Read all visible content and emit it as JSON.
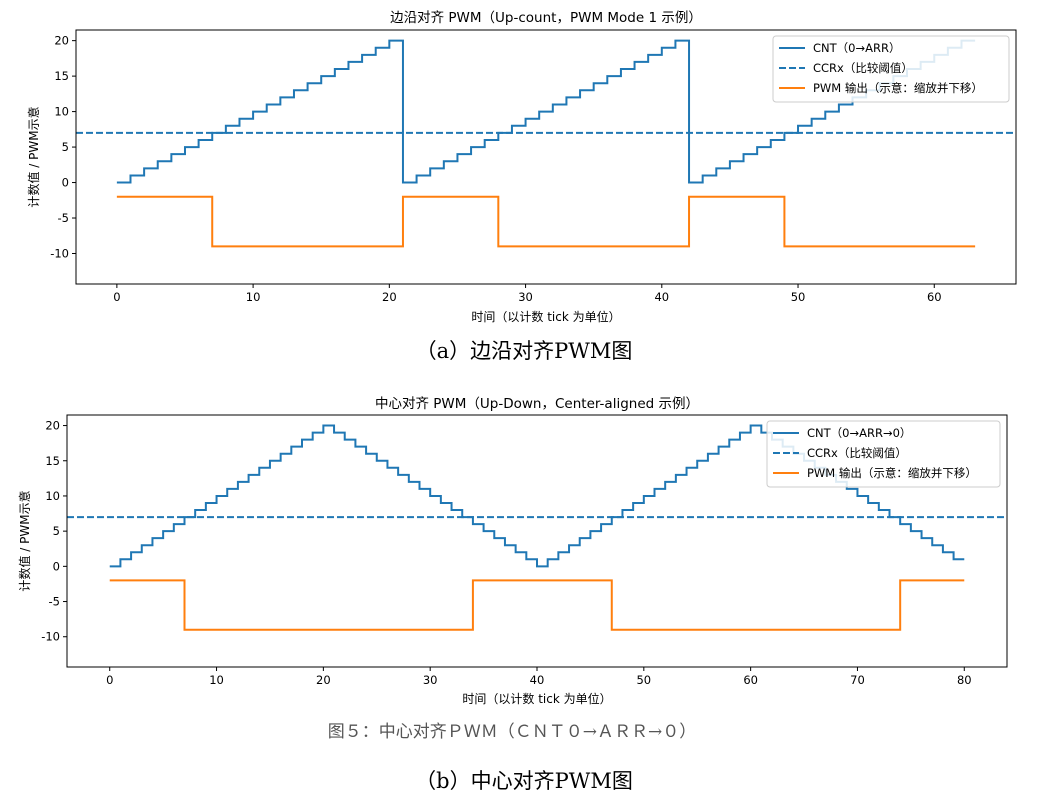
{
  "captions": {
    "a": "（a）边沿对齐PWM图",
    "b": "（b）中心对齐PWM图",
    "figure": "图５：中心对齐ＰＷＭ（ＣＮＴ０→ＡＲＲ→０）"
  },
  "colors": {
    "cnt": "#1f77b4",
    "ccr": "#1f77b4",
    "pwm": "#ff7f0e"
  },
  "chart_data": [
    {
      "type": "line",
      "title": "边沿对齐 PWM（Up-count，PWM Mode 1 示例）",
      "xlabel": "时间（以计数 tick 为单位）",
      "ylabel": "计数值 / PWM示意",
      "xlim": [
        -3,
        66
      ],
      "ylim": [
        -14.3,
        21.5
      ],
      "xticks": [
        0,
        10,
        20,
        30,
        40,
        50,
        60
      ],
      "yticks": [
        20,
        15,
        10,
        5,
        0,
        -5,
        -10
      ],
      "grid": false,
      "legend_position": "top-right",
      "series": [
        {
          "name": "CNT（0→ARR）",
          "style": "steps-post",
          "x": [
            0,
            1,
            2,
            3,
            4,
            5,
            6,
            7,
            8,
            9,
            10,
            11,
            12,
            13,
            14,
            15,
            16,
            17,
            18,
            19,
            20,
            21,
            22,
            23,
            24,
            25,
            26,
            27,
            28,
            29,
            30,
            31,
            32,
            33,
            34,
            35,
            36,
            37,
            38,
            39,
            40,
            41,
            42,
            43,
            44,
            45,
            46,
            47,
            48,
            49,
            50,
            51,
            52,
            53,
            54,
            55,
            56,
            57,
            58,
            59,
            60,
            61,
            62,
            63
          ],
          "y": [
            0,
            1,
            2,
            3,
            4,
            5,
            6,
            7,
            8,
            9,
            10,
            11,
            12,
            13,
            14,
            15,
            16,
            17,
            18,
            19,
            20,
            0,
            1,
            2,
            3,
            4,
            5,
            6,
            7,
            8,
            9,
            10,
            11,
            12,
            13,
            14,
            15,
            16,
            17,
            18,
            19,
            20,
            0,
            1,
            2,
            3,
            4,
            5,
            6,
            7,
            8,
            9,
            10,
            11,
            12,
            13,
            14,
            15,
            16,
            17,
            18,
            19,
            20,
            20
          ]
        },
        {
          "name": "CCRx（比较阈值）",
          "style": "hline-dashed",
          "y": 7
        },
        {
          "name": "PWM 输出（示意：缩放并下移）",
          "style": "steps-post",
          "x": [
            0,
            7,
            21,
            28,
            42,
            49,
            63
          ],
          "y": [
            -2,
            -9,
            -2,
            -9,
            -2,
            -9,
            -9
          ]
        }
      ]
    },
    {
      "type": "line",
      "title": "中心对齐 PWM（Up-Down，Center-aligned 示例）",
      "xlabel": "时间（以计数 tick 为单位）",
      "ylabel": "计数值 / PWM示意",
      "xlim": [
        -4,
        84
      ],
      "ylim": [
        -14.3,
        21.5
      ],
      "xticks": [
        0,
        10,
        20,
        30,
        40,
        50,
        60,
        70,
        80
      ],
      "yticks": [
        20,
        15,
        10,
        5,
        0,
        -5,
        -10
      ],
      "grid": false,
      "legend_position": "top-right",
      "series": [
        {
          "name": "CNT（0→ARR→0）",
          "style": "steps-post",
          "x": [
            0,
            1,
            2,
            3,
            4,
            5,
            6,
            7,
            8,
            9,
            10,
            11,
            12,
            13,
            14,
            15,
            16,
            17,
            18,
            19,
            20,
            21,
            22,
            23,
            24,
            25,
            26,
            27,
            28,
            29,
            30,
            31,
            32,
            33,
            34,
            35,
            36,
            37,
            38,
            39,
            40,
            41,
            42,
            43,
            44,
            45,
            46,
            47,
            48,
            49,
            50,
            51,
            52,
            53,
            54,
            55,
            56,
            57,
            58,
            59,
            60,
            61,
            62,
            63,
            64,
            65,
            66,
            67,
            68,
            69,
            70,
            71,
            72,
            73,
            74,
            75,
            76,
            77,
            78,
            79,
            80
          ],
          "y": [
            0,
            1,
            2,
            3,
            4,
            5,
            6,
            7,
            8,
            9,
            10,
            11,
            12,
            13,
            14,
            15,
            16,
            17,
            18,
            19,
            20,
            19,
            18,
            17,
            16,
            15,
            14,
            13,
            12,
            11,
            10,
            9,
            8,
            7,
            6,
            5,
            4,
            3,
            2,
            1,
            0,
            1,
            2,
            3,
            4,
            5,
            6,
            7,
            8,
            9,
            10,
            11,
            12,
            13,
            14,
            15,
            16,
            17,
            18,
            19,
            20,
            19,
            18,
            17,
            16,
            15,
            14,
            13,
            12,
            11,
            10,
            9,
            8,
            7,
            6,
            5,
            4,
            3,
            2,
            1,
            1
          ]
        },
        {
          "name": "CCRx（比较阈值）",
          "style": "hline-dashed",
          "y": 7
        },
        {
          "name": "PWM 输出（示意：缩放并下移）",
          "style": "steps-post",
          "x": [
            0,
            7,
            34,
            47,
            74,
            80
          ],
          "y": [
            -2,
            -9,
            -2,
            -9,
            -2,
            -2
          ]
        }
      ]
    }
  ]
}
